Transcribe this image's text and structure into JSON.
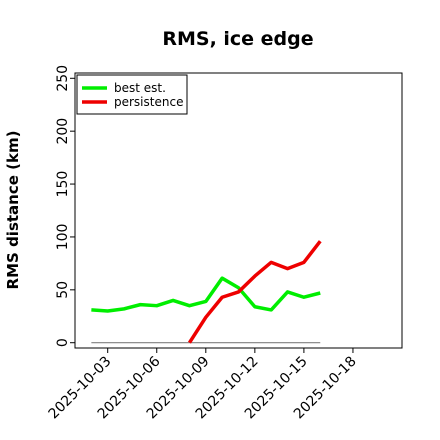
{
  "chart_data": {
    "type": "line",
    "title": "RMS, ice edge",
    "xlabel": "",
    "ylabel": "RMS distance (km)",
    "ylim": [
      -5,
      255
    ],
    "yticks": [
      0,
      50,
      100,
      150,
      200,
      250
    ],
    "xlim": [
      "2025-10-01",
      "2025-10-21"
    ],
    "xticks": [
      "2025-10-03",
      "2025-10-06",
      "2025-10-09",
      "2025-10-12",
      "2025-10-15",
      "2025-10-18"
    ],
    "grid": false,
    "legend_position": "top-left",
    "reference_line": {
      "y": 0,
      "x_range": [
        "2025-10-02",
        "2025-10-16"
      ],
      "color": "#808080"
    },
    "series": [
      {
        "name": "best est.",
        "color": "#00ee00",
        "x": [
          "2025-10-02",
          "2025-10-03",
          "2025-10-04",
          "2025-10-05",
          "2025-10-06",
          "2025-10-07",
          "2025-10-08",
          "2025-10-09",
          "2025-10-10",
          "2025-10-11",
          "2025-10-12",
          "2025-10-13",
          "2025-10-14",
          "2025-10-15",
          "2025-10-16"
        ],
        "values": [
          31,
          30,
          32,
          36,
          35,
          40,
          35,
          39,
          61,
          52,
          34,
          31,
          48,
          43,
          47
        ]
      },
      {
        "name": "persistence",
        "color": "#ee0000",
        "x": [
          "2025-10-08",
          "2025-10-09",
          "2025-10-10",
          "2025-10-11",
          "2025-10-12",
          "2025-10-13",
          "2025-10-14",
          "2025-10-15",
          "2025-10-16"
        ],
        "values": [
          0,
          24,
          43,
          48,
          63,
          76,
          70,
          76,
          96
        ]
      }
    ]
  }
}
